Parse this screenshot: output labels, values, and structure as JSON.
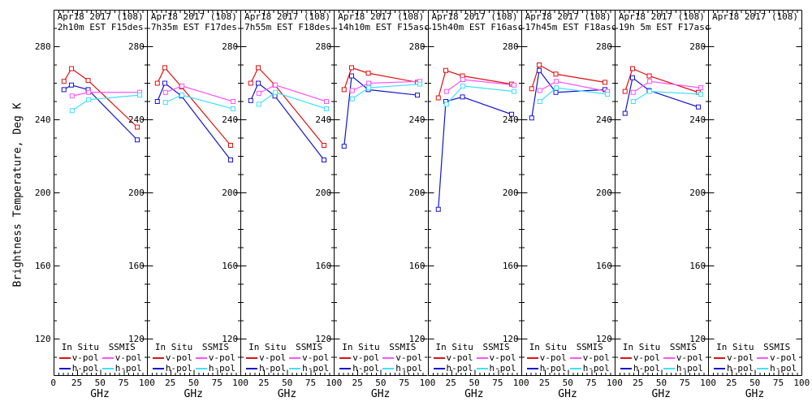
{
  "figure": {
    "y_axis_label": "Brightness Temperature, Deg K",
    "x_axis_label": "GHz",
    "legend": {
      "col1": "In Situ",
      "col2": "SSMIS",
      "row_v": "v-pol",
      "row_h": "h-pol"
    },
    "colors": {
      "in_situ_v": "#e01010",
      "in_situ_h": "#1515cd",
      "ssmis_v": "#ff52ff",
      "ssmis_h": "#3fe0ff",
      "axis": "#000000"
    }
  },
  "chart_data": {
    "type": "line",
    "xlabel": "GHz",
    "ylabel": "Brightness Temperature, Deg K",
    "xlim": [
      0,
      100
    ],
    "ylim": [
      100,
      300
    ],
    "x_ticks": [
      0,
      25,
      50,
      75,
      100
    ],
    "x_tick_labels": [
      "0",
      "25",
      "50",
      "75",
      "100"
    ],
    "y_ticks": [
      280,
      240,
      200,
      160,
      120
    ],
    "y_tick_labels": [
      "280",
      "240",
      "200",
      "160",
      "120"
    ],
    "grid": false,
    "legend_position": "bottom-inside-each-panel",
    "in_situ_freqs_ghz": [
      10.65,
      18.7,
      36.5,
      89
    ],
    "ssmis_freqs_ghz": [
      19.35,
      37,
      91.655
    ],
    "panels": [
      {
        "title_line1": "Apr18 2017 (108)",
        "title_line2": "2h10m EST F15des",
        "series": {
          "in_situ_v": [
            261,
            268,
            261.5,
            236
          ],
          "in_situ_h": [
            256.5,
            259,
            256.5,
            229
          ],
          "ssmis_v": [
            253,
            255,
            255
          ],
          "ssmis_h": [
            245,
            251,
            253.5
          ]
        }
      },
      {
        "title_line1": "Apr18 2017 (108)",
        "title_line2": "7h35m EST F17des",
        "series": {
          "in_situ_v": [
            260,
            268.5,
            258,
            226
          ],
          "in_situ_h": [
            250,
            260,
            253,
            218
          ],
          "ssmis_v": [
            255,
            258.5,
            250
          ],
          "ssmis_h": [
            249.5,
            253.5,
            246
          ]
        }
      },
      {
        "title_line1": "Apr18 2017 (108)",
        "title_line2": "7h55m EST F18des",
        "series": {
          "in_situ_v": [
            260,
            268.5,
            259,
            226
          ],
          "in_situ_h": [
            250.5,
            260,
            253,
            218
          ],
          "ssmis_v": [
            254.5,
            259,
            250
          ],
          "ssmis_h": [
            248.5,
            255,
            246
          ]
        }
      },
      {
        "title_line1": "Apr18 2017 (108)",
        "title_line2": "14h10m EST F15asc",
        "series": {
          "in_situ_v": [
            256.5,
            268.5,
            265.5,
            260.5
          ],
          "in_situ_h": [
            225.5,
            264,
            256.5,
            253.5
          ],
          "ssmis_v": [
            256,
            260,
            261
          ],
          "ssmis_h": [
            251.5,
            257.5,
            259.5
          ]
        }
      },
      {
        "title_line1": "Apr18 2017 (108)",
        "title_line2": "15h40m EST F16asc",
        "series": {
          "in_situ_v": [
            252,
            267,
            264,
            259.5
          ],
          "in_situ_h": [
            191,
            250,
            252.5,
            243
          ],
          "ssmis_v": [
            255.5,
            262,
            259
          ],
          "ssmis_h": [
            248.5,
            258.5,
            255.5
          ]
        }
      },
      {
        "title_line1": "Apr18 2017 (108)",
        "title_line2": "17h45m EST F18asc",
        "series": {
          "in_situ_v": [
            257,
            270,
            265,
            260.5
          ],
          "in_situ_h": [
            241,
            267,
            255,
            256.5
          ],
          "ssmis_v": [
            256,
            261,
            255.5
          ],
          "ssmis_h": [
            250,
            257.5,
            254
          ]
        }
      },
      {
        "title_line1": "Apr18 2017 (108)",
        "title_line2": "19h 5m EST F17asc",
        "series": {
          "in_situ_v": [
            255.5,
            268,
            264,
            255
          ],
          "in_situ_h": [
            243.5,
            263,
            256,
            247
          ],
          "ssmis_v": [
            255,
            261,
            257.5
          ],
          "ssmis_h": [
            250,
            255.5,
            254
          ]
        }
      },
      {
        "title_line1": "Apr18 2017 (108)",
        "title_line2": "",
        "series": null
      }
    ]
  }
}
